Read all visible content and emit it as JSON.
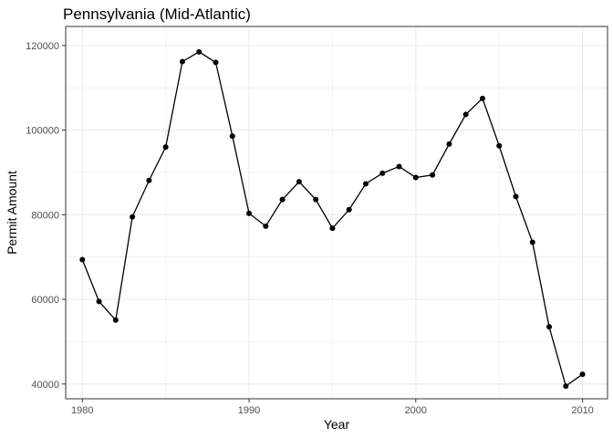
{
  "chart_data": {
    "type": "line",
    "title": "Pennsylvania (Mid-Atlantic)",
    "xlabel": "Year",
    "ylabel": "Permit Amount",
    "x": [
      1980,
      1981,
      1982,
      1983,
      1984,
      1985,
      1986,
      1987,
      1988,
      1989,
      1990,
      1991,
      1992,
      1993,
      1994,
      1995,
      1996,
      1997,
      1998,
      1999,
      2000,
      2001,
      2002,
      2003,
      2004,
      2005,
      2006,
      2007,
      2008,
      2009,
      2010
    ],
    "series": [
      {
        "values": [
          69400,
          59500,
          55100,
          79500,
          88100,
          96000,
          116200,
          118500,
          116000,
          98600,
          80300,
          77300,
          83600,
          87800,
          83600,
          76800,
          81200,
          87300,
          89800,
          91400,
          88800,
          89400,
          96700,
          103700,
          107500,
          96300,
          84300,
          73500,
          53500,
          39500,
          42300
        ]
      }
    ],
    "xlim": [
      1979,
      2011.5
    ],
    "ylim": [
      36500,
      124500
    ],
    "xticks": [
      1980,
      1990,
      2000,
      2010
    ],
    "yticks": [
      40000,
      60000,
      80000,
      100000,
      120000
    ],
    "xtick_labels": [
      "1980",
      "1990",
      "2000",
      "2010"
    ],
    "ytick_labels": [
      "40000",
      "60000",
      "80000",
      "100000",
      "120000"
    ],
    "grid": true,
    "line_color": "#000000",
    "point_color": "#000000",
    "grid_color": "#ebebeb",
    "border_color": "#333333"
  }
}
